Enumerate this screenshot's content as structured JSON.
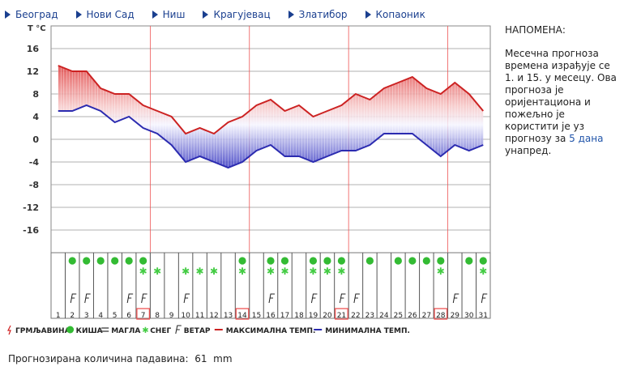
{
  "nav": [
    {
      "label": "Београд"
    },
    {
      "label": "Нови Сад"
    },
    {
      "label": "Ниш"
    },
    {
      "label": "Крагујевац"
    },
    {
      "label": "Златибор"
    },
    {
      "label": "Копаоник"
    }
  ],
  "note": {
    "title": "НАПОМЕНА:",
    "text": "Месечна прогноза времена израђује се 1. и 15. у месецу. Ова прогноза је оријентациона и пожељно је користити је уз прогнозу за",
    "link": "5 дана",
    "text_end": "унапред."
  },
  "precipitation": {
    "label": "Прогнозирана количина падавина:",
    "value": "61",
    "unit": "mm"
  },
  "colors": {
    "max": "#cc2222",
    "min": "#2b2bb0",
    "rain": "#33bb33",
    "snow": "#44cc44",
    "grid": "#999999",
    "weekmark": "#ee5555"
  },
  "chart_data": {
    "type": "line",
    "ylabel": "T °C",
    "ylim": [
      -20,
      20
    ],
    "yticks": [
      16,
      12,
      8,
      4,
      0,
      -4,
      -8,
      -12,
      -16
    ],
    "x": [
      1,
      2,
      3,
      4,
      5,
      6,
      7,
      8,
      9,
      10,
      11,
      12,
      13,
      14,
      15,
      16,
      17,
      18,
      19,
      20,
      21,
      22,
      23,
      24,
      25,
      26,
      27,
      28,
      29,
      30,
      31
    ],
    "series": [
      {
        "name": "МАКСИМАЛНА ТЕМП.",
        "values": [
          13,
          12,
          12,
          9,
          8,
          8,
          6,
          5,
          4,
          1,
          2,
          1,
          3,
          4,
          6,
          7,
          5,
          6,
          4,
          5,
          6,
          8,
          7,
          9,
          10,
          11,
          9,
          8,
          10,
          8,
          5
        ]
      },
      {
        "name": "МИНИМАЛНА ТЕМП.",
        "values": [
          5,
          5,
          6,
          5,
          3,
          4,
          2,
          1,
          -1,
          -4,
          -3,
          -4,
          -5,
          -4,
          -2,
          -1,
          -3,
          -3,
          -4,
          -3,
          -2,
          -2,
          -1,
          1,
          1,
          1,
          -1,
          -3,
          -1,
          -2,
          -1
        ]
      }
    ],
    "weekday_marks": [
      7,
      14,
      21,
      28
    ],
    "rain_days": [
      2,
      3,
      4,
      5,
      6,
      7,
      14,
      16,
      17,
      19,
      20,
      21,
      23,
      25,
      26,
      27,
      28,
      30,
      31
    ],
    "snow_days": [
      7,
      8,
      10,
      11,
      12,
      14,
      16,
      17,
      19,
      20,
      21,
      28,
      31
    ],
    "wind_days": [
      2,
      3,
      6,
      7,
      10,
      16,
      19,
      21,
      22,
      29,
      31
    ],
    "legend": [
      {
        "key": "storm",
        "label": "ГРМЉАВИНА"
      },
      {
        "key": "rain",
        "label": "КИША"
      },
      {
        "key": "fog",
        "label": "МАГЛА"
      },
      {
        "key": "snow",
        "label": "СНЕГ"
      },
      {
        "key": "wind",
        "label": "ВЕТАР"
      },
      {
        "key": "max",
        "label": "МАКСИМАЛНА ТЕМП."
      },
      {
        "key": "min",
        "label": "МИНИМАЛНА ТЕМП."
      }
    ]
  }
}
